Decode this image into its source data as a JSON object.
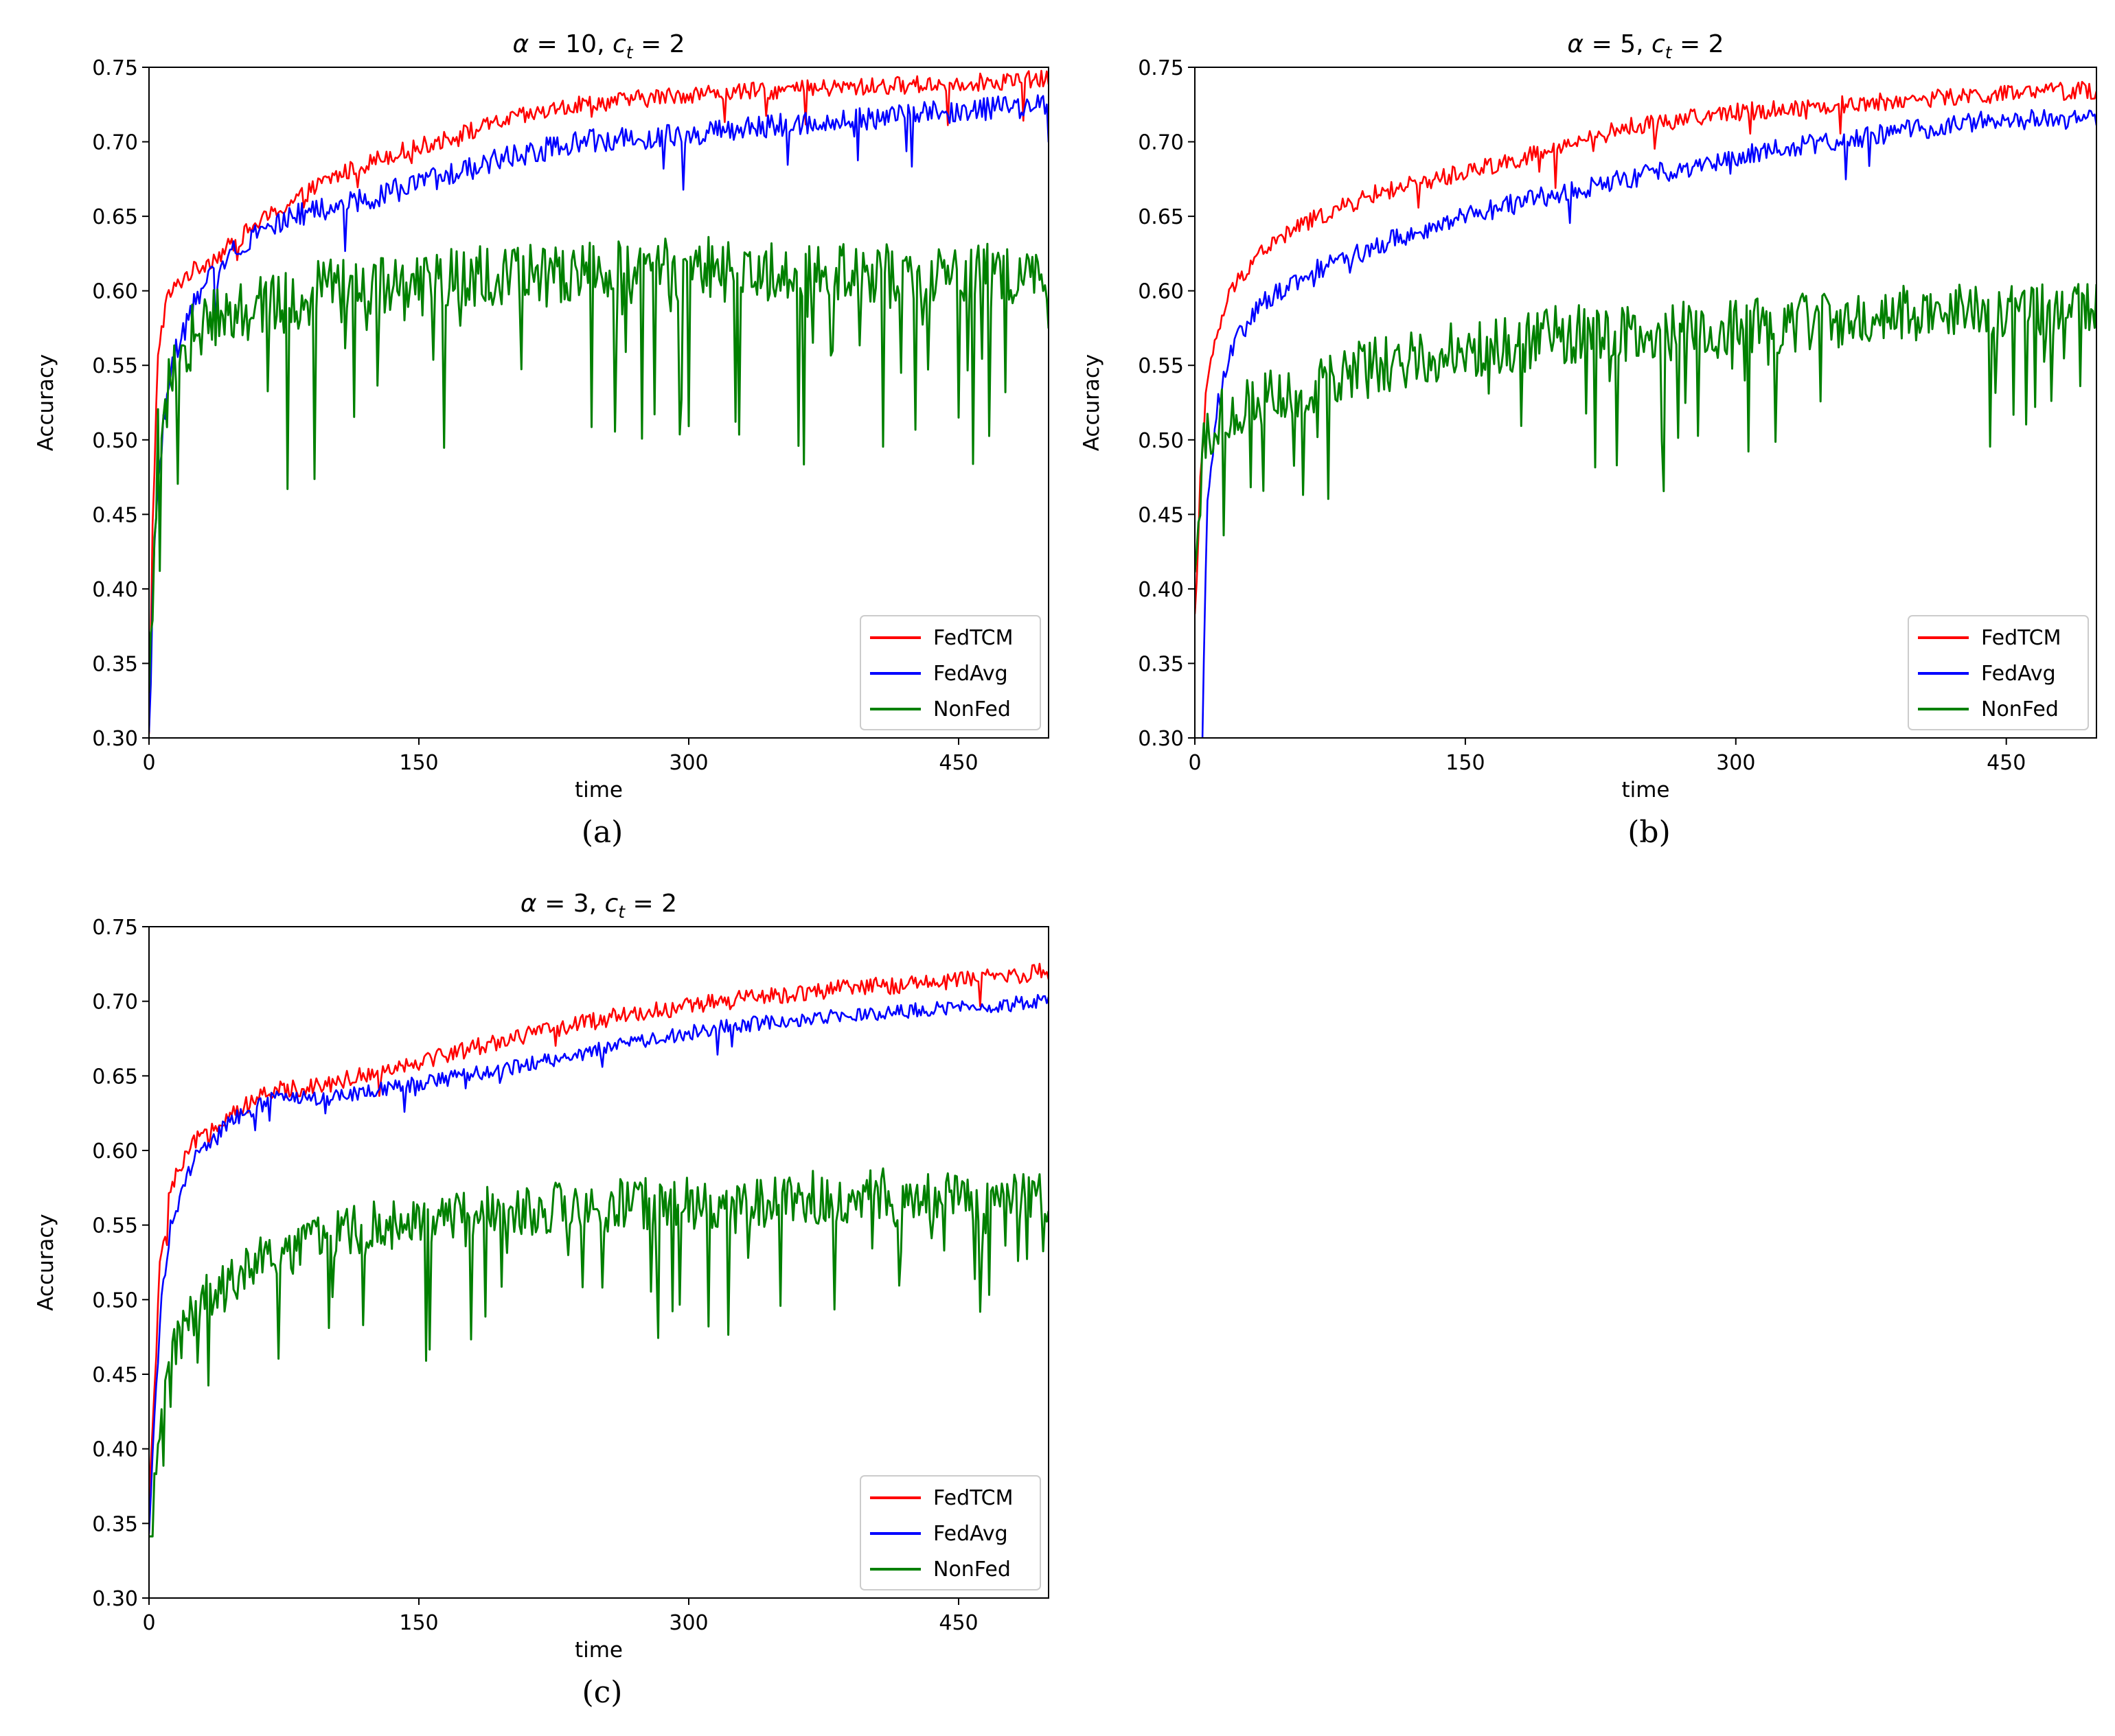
{
  "chart_data": [
    {
      "type": "line",
      "panel_label": "(a)",
      "title_parts": {
        "alpha": "α",
        "alpha_eq": " = 10, ",
        "c": "c",
        "sub": "t",
        "c_eq": " = 2"
      },
      "xlabel": "time",
      "ylabel": "Accuracy",
      "xlim": [
        0,
        500
      ],
      "ylim": [
        0.3,
        0.75
      ],
      "xticks": [
        0,
        150,
        300,
        450
      ],
      "xtick_labels": [
        "0",
        "150",
        "300",
        "450"
      ],
      "yticks": [
        0.3,
        0.35,
        0.4,
        0.45,
        0.5,
        0.55,
        0.6,
        0.65,
        0.7,
        0.75
      ],
      "ytick_labels": [
        "0.30",
        "0.35",
        "0.40",
        "0.45",
        "0.50",
        "0.55",
        "0.60",
        "0.65",
        "0.70",
        "0.75"
      ],
      "legend_position": "lower-right",
      "series": [
        {
          "name": "FedTCM",
          "color": "#ff0000",
          "points": [
            [
              0,
              0.3
            ],
            [
              2,
              0.44
            ],
            [
              5,
              0.56
            ],
            [
              10,
              0.595
            ],
            [
              20,
              0.61
            ],
            [
              40,
              0.625
            ],
            [
              60,
              0.645
            ],
            [
              80,
              0.66
            ],
            [
              100,
              0.675
            ],
            [
              130,
              0.69
            ],
            [
              160,
              0.7
            ],
            [
              200,
              0.715
            ],
            [
              240,
              0.725
            ],
            [
              300,
              0.732
            ],
            [
              360,
              0.735
            ],
            [
              420,
              0.738
            ],
            [
              500,
              0.742
            ]
          ],
          "noise": 0.006,
          "dip_prob": 0.02,
          "dip_size": 0.03
        },
        {
          "name": "FedAvg",
          "color": "#0000ff",
          "points": [
            [
              0,
              0.3
            ],
            [
              3,
              0.43
            ],
            [
              6,
              0.49
            ],
            [
              10,
              0.53
            ],
            [
              15,
              0.56
            ],
            [
              25,
              0.59
            ],
            [
              40,
              0.62
            ],
            [
              60,
              0.64
            ],
            [
              80,
              0.65
            ],
            [
              100,
              0.655
            ],
            [
              130,
              0.665
            ],
            [
              160,
              0.675
            ],
            [
              200,
              0.69
            ],
            [
              240,
              0.7
            ],
            [
              300,
              0.705
            ],
            [
              360,
              0.712
            ],
            [
              420,
              0.718
            ],
            [
              500,
              0.725
            ]
          ],
          "noise": 0.008,
          "dip_prob": 0.03,
          "dip_size": 0.04
        },
        {
          "name": "NonFed",
          "color": "#008000",
          "points": [
            [
              0,
              0.32
            ],
            [
              5,
              0.5
            ],
            [
              15,
              0.56
            ],
            [
              40,
              0.585
            ],
            [
              100,
              0.6
            ],
            [
              200,
              0.61
            ],
            [
              300,
              0.615
            ],
            [
              400,
              0.61
            ],
            [
              500,
              0.61
            ]
          ],
          "noise": 0.022,
          "dip_prob": 0.12,
          "dip_size": 0.13
        }
      ]
    },
    {
      "type": "line",
      "panel_label": "(b)",
      "title_parts": {
        "alpha": "α",
        "alpha_eq": " = 5, ",
        "c": "c",
        "sub": "t",
        "c_eq": " = 2"
      },
      "xlabel": "time",
      "ylabel": "Accuracy",
      "xlim": [
        0,
        500
      ],
      "ylim": [
        0.3,
        0.75
      ],
      "xticks": [
        0,
        150,
        300,
        450
      ],
      "xtick_labels": [
        "0",
        "150",
        "300",
        "450"
      ],
      "yticks": [
        0.3,
        0.35,
        0.4,
        0.45,
        0.5,
        0.55,
        0.6,
        0.65,
        0.7,
        0.75
      ],
      "ytick_labels": [
        "0.30",
        "0.35",
        "0.40",
        "0.45",
        "0.50",
        "0.55",
        "0.60",
        "0.65",
        "0.70",
        "0.75"
      ],
      "legend_position": "lower-right",
      "series": [
        {
          "name": "FedTCM",
          "color": "#ff0000",
          "points": [
            [
              0,
              0.38
            ],
            [
              3,
              0.47
            ],
            [
              6,
              0.53
            ],
            [
              12,
              0.57
            ],
            [
              20,
              0.6
            ],
            [
              35,
              0.625
            ],
            [
              60,
              0.645
            ],
            [
              100,
              0.665
            ],
            [
              150,
              0.68
            ],
            [
              200,
              0.695
            ],
            [
              240,
              0.71
            ],
            [
              300,
              0.72
            ],
            [
              360,
              0.725
            ],
            [
              420,
              0.73
            ],
            [
              500,
              0.735
            ]
          ],
          "noise": 0.006,
          "dip_prob": 0.02,
          "dip_size": 0.03
        },
        {
          "name": "FedAvg",
          "color": "#0000ff",
          "points": [
            [
              0,
              0.28
            ],
            [
              4,
              0.3
            ],
            [
              7,
              0.46
            ],
            [
              12,
              0.52
            ],
            [
              20,
              0.56
            ],
            [
              35,
              0.59
            ],
            [
              60,
              0.61
            ],
            [
              100,
              0.63
            ],
            [
              150,
              0.65
            ],
            [
              200,
              0.665
            ],
            [
              260,
              0.68
            ],
            [
              320,
              0.695
            ],
            [
              380,
              0.705
            ],
            [
              440,
              0.715
            ],
            [
              500,
              0.715
            ]
          ],
          "noise": 0.007,
          "dip_prob": 0.02,
          "dip_size": 0.025
        },
        {
          "name": "NonFed",
          "color": "#008000",
          "points": [
            [
              0,
              0.4
            ],
            [
              5,
              0.5
            ],
            [
              15,
              0.52
            ],
            [
              50,
              0.53
            ],
            [
              100,
              0.55
            ],
            [
              150,
              0.56
            ],
            [
              200,
              0.57
            ],
            [
              300,
              0.575
            ],
            [
              400,
              0.585
            ],
            [
              500,
              0.585
            ]
          ],
          "noise": 0.02,
          "dip_prob": 0.11,
          "dip_size": 0.1
        }
      ]
    },
    {
      "type": "line",
      "panel_label": "(c)",
      "title_parts": {
        "alpha": "α",
        "alpha_eq": " = 3, ",
        "c": "c",
        "sub": "t",
        "c_eq": " = 2"
      },
      "xlabel": "time",
      "ylabel": "Accuracy",
      "xlim": [
        0,
        500
      ],
      "ylim": [
        0.3,
        0.75
      ],
      "xticks": [
        0,
        150,
        300,
        450
      ],
      "xtick_labels": [
        "0",
        "150",
        "300",
        "450"
      ],
      "yticks": [
        0.3,
        0.35,
        0.4,
        0.45,
        0.5,
        0.55,
        0.6,
        0.65,
        0.7,
        0.75
      ],
      "ytick_labels": [
        "0.30",
        "0.35",
        "0.40",
        "0.45",
        "0.50",
        "0.55",
        "0.60",
        "0.65",
        "0.70",
        "0.75"
      ],
      "legend_position": "lower-right",
      "series": [
        {
          "name": "FedTCM",
          "color": "#ff0000",
          "points": [
            [
              0,
              0.36
            ],
            [
              3,
              0.44
            ],
            [
              6,
              0.52
            ],
            [
              12,
              0.575
            ],
            [
              25,
              0.605
            ],
            [
              45,
              0.625
            ],
            [
              70,
              0.64
            ],
            [
              100,
              0.645
            ],
            [
              150,
              0.66
            ],
            [
              200,
              0.675
            ],
            [
              260,
              0.69
            ],
            [
              320,
              0.7
            ],
            [
              380,
              0.708
            ],
            [
              440,
              0.713
            ],
            [
              500,
              0.72
            ]
          ],
          "noise": 0.006,
          "dip_prob": 0.02,
          "dip_size": 0.025
        },
        {
          "name": "FedAvg",
          "color": "#0000ff",
          "points": [
            [
              0,
              0.34
            ],
            [
              3,
              0.42
            ],
            [
              7,
              0.5
            ],
            [
              12,
              0.55
            ],
            [
              25,
              0.595
            ],
            [
              45,
              0.62
            ],
            [
              70,
              0.635
            ],
            [
              100,
              0.635
            ],
            [
              150,
              0.645
            ],
            [
              200,
              0.655
            ],
            [
              260,
              0.67
            ],
            [
              320,
              0.683
            ],
            [
              380,
              0.69
            ],
            [
              440,
              0.695
            ],
            [
              500,
              0.7
            ]
          ],
          "noise": 0.005,
          "dip_prob": 0.02,
          "dip_size": 0.02
        },
        {
          "name": "NonFed",
          "color": "#008000",
          "points": [
            [
              0,
              0.33
            ],
            [
              5,
              0.4
            ],
            [
              15,
              0.47
            ],
            [
              30,
              0.5
            ],
            [
              60,
              0.525
            ],
            [
              100,
              0.545
            ],
            [
              150,
              0.555
            ],
            [
              200,
              0.56
            ],
            [
              300,
              0.565
            ],
            [
              400,
              0.57
            ],
            [
              500,
              0.57
            ]
          ],
          "noise": 0.018,
          "dip_prob": 0.1,
          "dip_size": 0.09
        }
      ]
    }
  ]
}
